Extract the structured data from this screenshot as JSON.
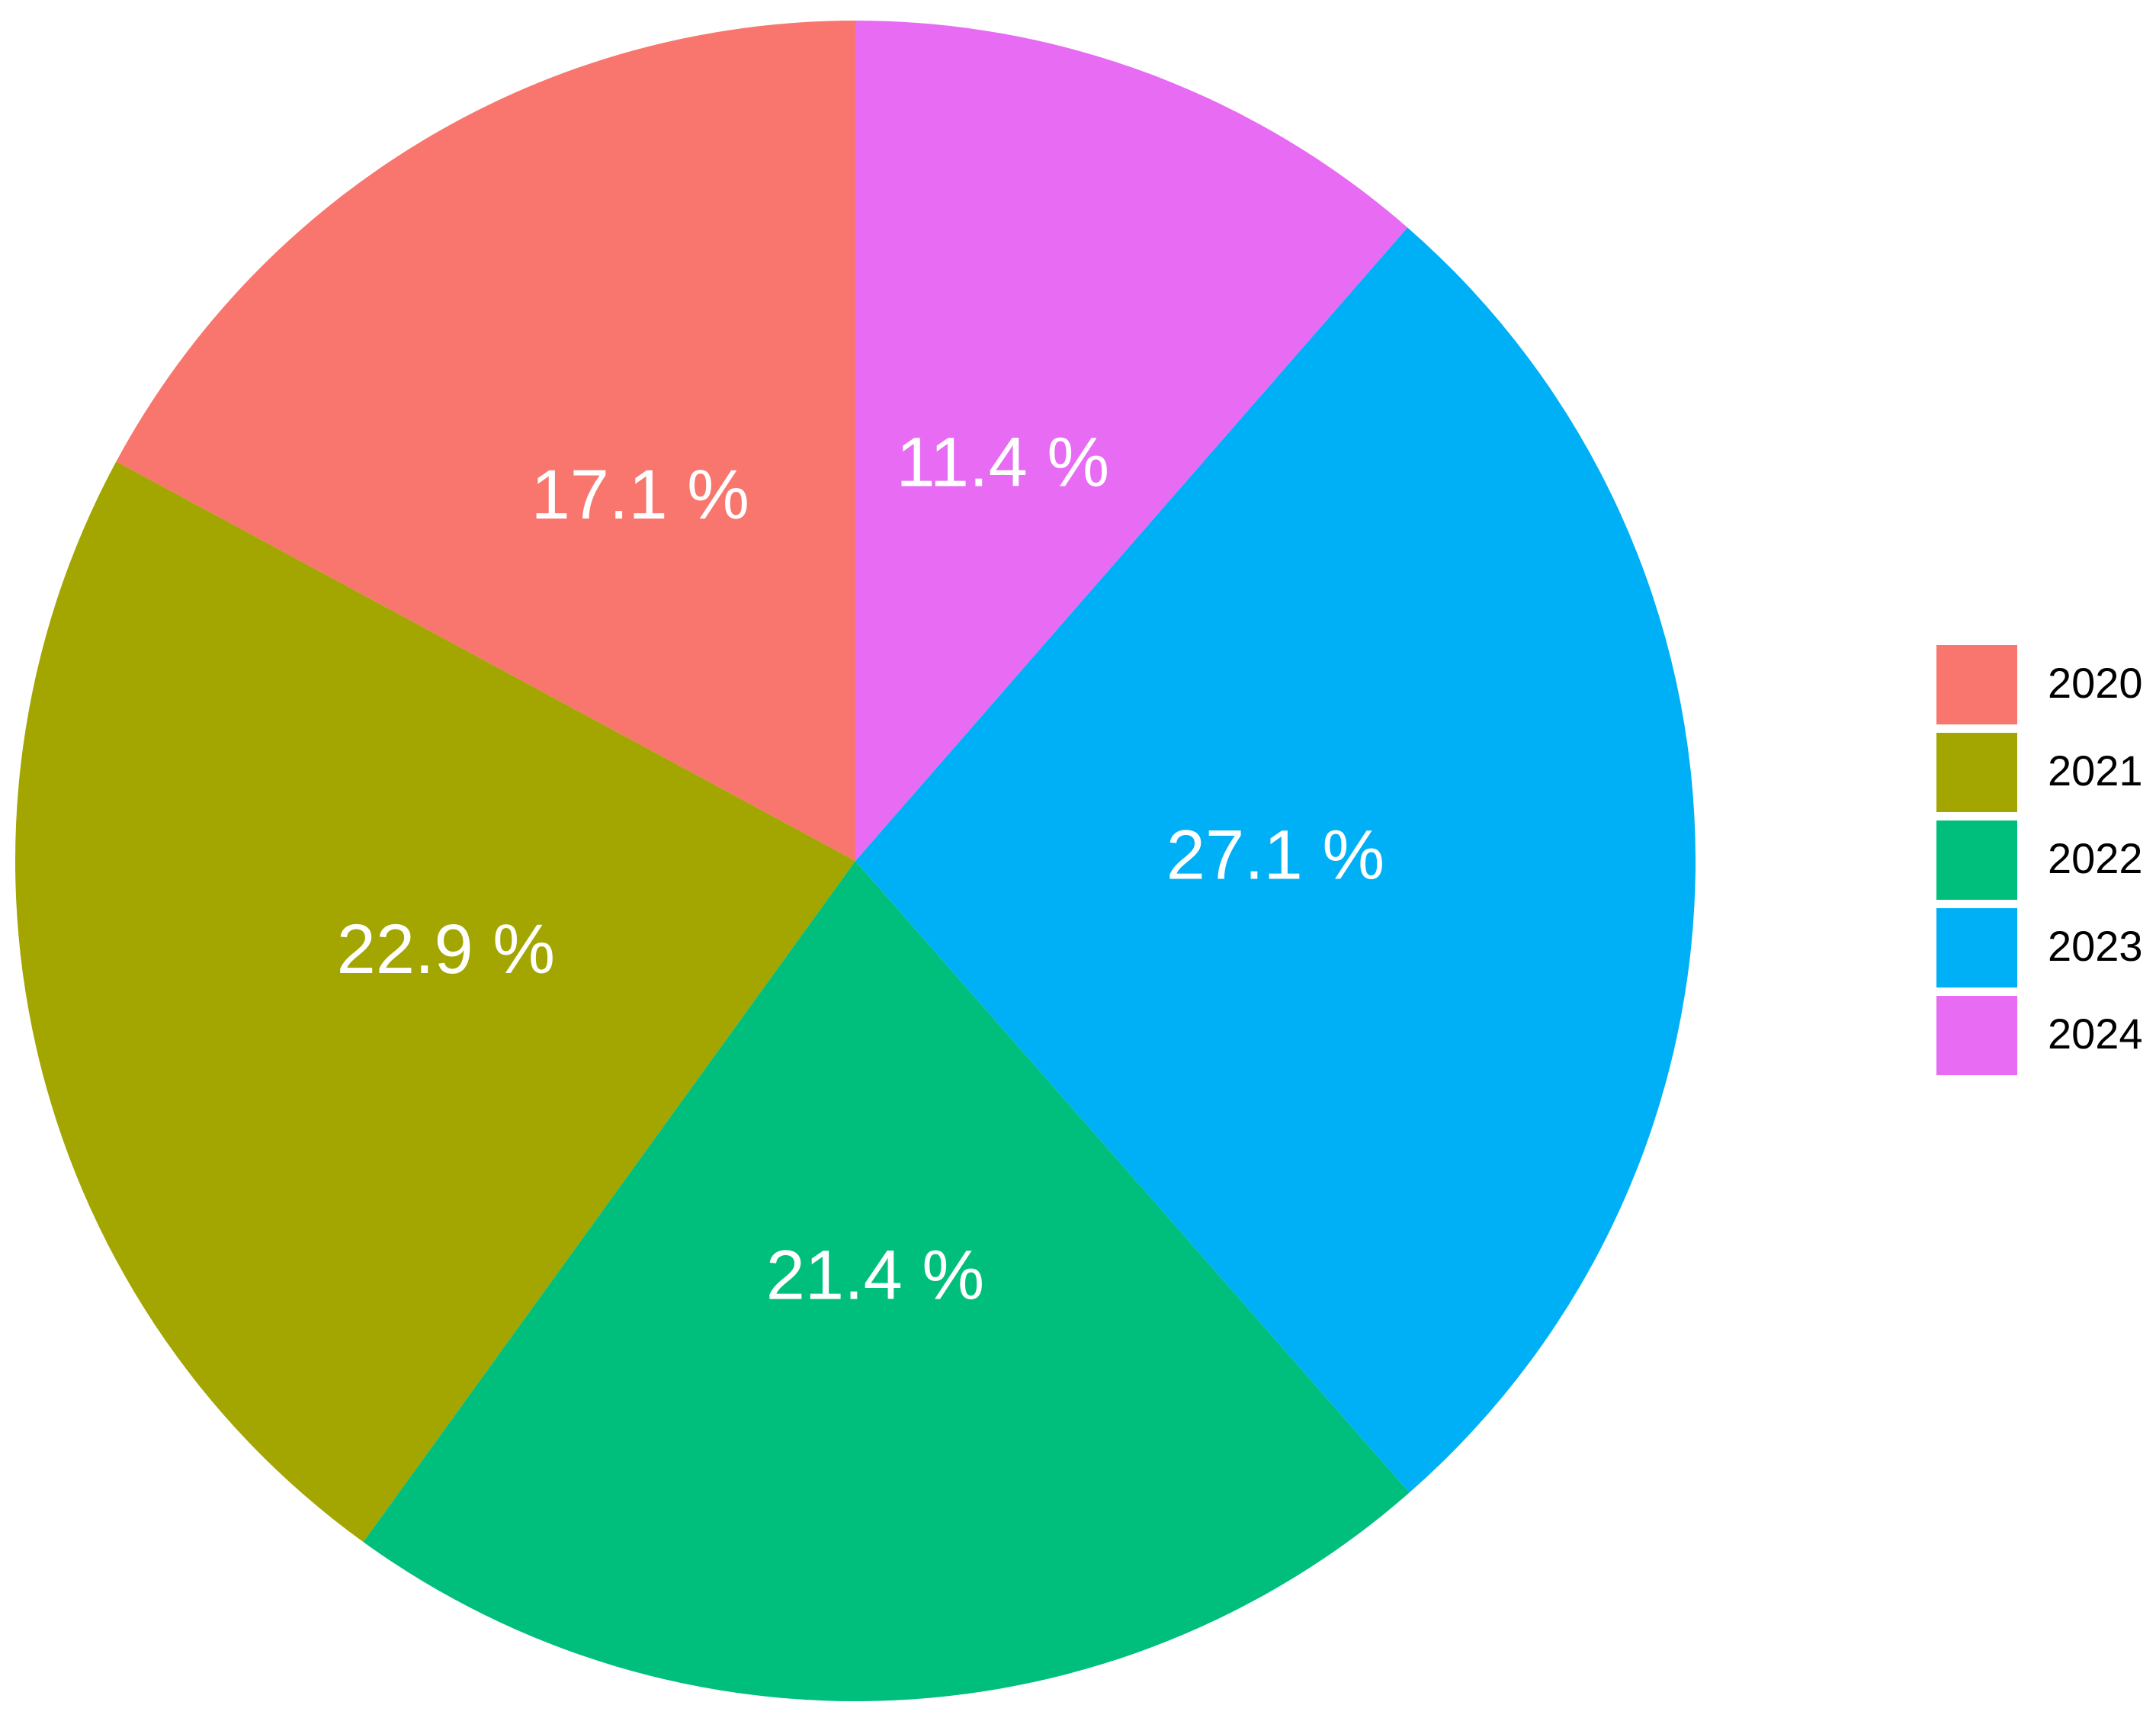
{
  "chart_data": {
    "type": "pie",
    "categories": [
      "2020",
      "2021",
      "2022",
      "2023",
      "2024"
    ],
    "values": [
      17.1,
      22.9,
      21.4,
      27.1,
      11.4
    ],
    "value_labels": [
      "17.1 %",
      "22.9 %",
      "21.4 %",
      "27.1 %",
      "11.4 %"
    ],
    "colors": [
      "#f8766d",
      "#a3a500",
      "#00bf7d",
      "#00b0f6",
      "#e76bf3"
    ],
    "legend": "right"
  }
}
